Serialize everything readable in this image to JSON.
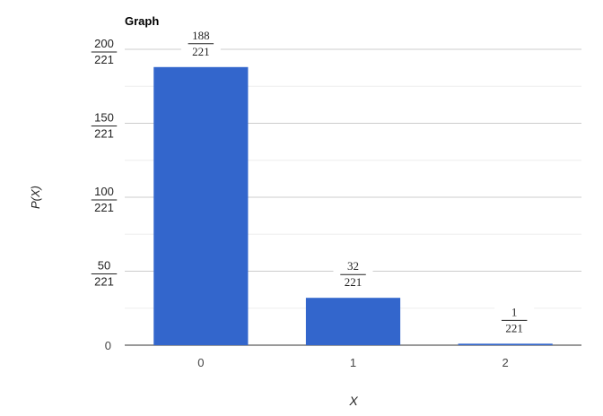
{
  "chart_data": {
    "type": "bar",
    "title": "Graph",
    "xlabel": "X",
    "ylabel": "P(X)",
    "categories": [
      "0",
      "1",
      "2"
    ],
    "values": [
      0.8506787,
      0.1447964,
      0.0045249
    ],
    "data_labels": [
      {
        "num": "188",
        "den": "221"
      },
      {
        "num": "32",
        "den": "221"
      },
      {
        "num": "1",
        "den": "221"
      }
    ],
    "ylim": [
      0,
      0.9049774
    ],
    "y_ticks": [
      {
        "value": 0,
        "num": "0",
        "den": ""
      },
      {
        "value": 0.2262443,
        "num": "50",
        "den": "221"
      },
      {
        "value": 0.4524887,
        "num": "100",
        "den": "221"
      },
      {
        "value": 0.678733,
        "num": "150",
        "den": "221"
      },
      {
        "value": 0.9049774,
        "num": "200",
        "den": "221"
      }
    ],
    "minor_gridlines": true,
    "grid": true,
    "legend": "none",
    "bar_color": "#3366cc"
  }
}
